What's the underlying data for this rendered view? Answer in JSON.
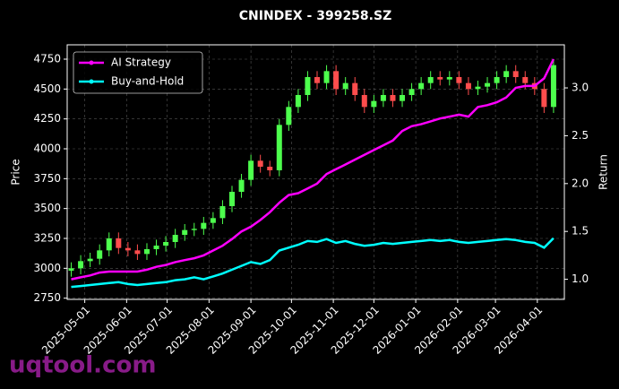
{
  "chart_data": {
    "type": "candlestick",
    "title": "CNINDEX - 399258.SZ",
    "y_label": "Price",
    "y2_label": "Return",
    "watermark": "uqtool.com",
    "up_color": "#4dff4d",
    "down_color": "#ff4d4d",
    "grid": true,
    "legend": "upper left",
    "x": [
      "2025-04-21",
      "2025-04-28",
      "2025-05-05",
      "2025-05-12",
      "2025-05-19",
      "2025-05-26",
      "2025-06-02",
      "2025-06-09",
      "2025-06-16",
      "2025-06-23",
      "2025-06-30",
      "2025-07-07",
      "2025-07-14",
      "2025-07-21",
      "2025-07-28",
      "2025-08-04",
      "2025-08-11",
      "2025-08-18",
      "2025-08-25",
      "2025-09-01",
      "2025-09-08",
      "2025-09-15",
      "2025-09-22",
      "2025-09-29",
      "2025-10-06",
      "2025-10-13",
      "2025-10-20",
      "2025-10-27",
      "2025-11-03",
      "2025-11-10",
      "2025-11-17",
      "2025-11-24",
      "2025-12-01",
      "2025-12-08",
      "2025-12-15",
      "2025-12-22",
      "2025-12-29",
      "2026-01-05",
      "2026-01-12",
      "2026-01-19",
      "2026-01-26",
      "2026-02-02",
      "2026-02-09",
      "2026-02-16",
      "2026-02-23",
      "2026-03-02",
      "2026-03-09",
      "2026-03-16",
      "2026-03-23",
      "2026-03-30",
      "2026-04-06",
      "2026-04-13"
    ],
    "open": [
      2980,
      3000,
      3060,
      3080,
      3150,
      3250,
      3170,
      3150,
      3120,
      3160,
      3190,
      3220,
      3280,
      3320,
      3330,
      3380,
      3420,
      3520,
      3640,
      3740,
      3900,
      3850,
      3820,
      4200,
      4350,
      4450,
      4600,
      4550,
      4650,
      4500,
      4550,
      4450,
      4350,
      4400,
      4450,
      4400,
      4450,
      4500,
      4550,
      4600,
      4580,
      4600,
      4550,
      4500,
      4520,
      4550,
      4600,
      4650,
      4600,
      4550,
      4500,
      4350
    ],
    "high": [
      3050,
      3110,
      3130,
      3200,
      3300,
      3300,
      3220,
      3200,
      3210,
      3240,
      3270,
      3330,
      3370,
      3380,
      3430,
      3470,
      3570,
      3690,
      3790,
      3950,
      3950,
      3900,
      4250,
      4400,
      4500,
      4650,
      4650,
      4700,
      4700,
      4600,
      4600,
      4500,
      4450,
      4500,
      4500,
      4500,
      4550,
      4600,
      4650,
      4650,
      4650,
      4650,
      4600,
      4570,
      4600,
      4650,
      4700,
      4700,
      4650,
      4600,
      4550,
      4750
    ],
    "low": [
      2930,
      2950,
      3010,
      3030,
      3100,
      3120,
      3100,
      3070,
      3070,
      3110,
      3140,
      3170,
      3230,
      3270,
      3280,
      3330,
      3370,
      3470,
      3590,
      3690,
      3800,
      3770,
      3770,
      4150,
      4300,
      4400,
      4500,
      4500,
      4450,
      4450,
      4400,
      4300,
      4300,
      4350,
      4350,
      4350,
      4400,
      4450,
      4500,
      4530,
      4530,
      4500,
      4450,
      4450,
      4470,
      4500,
      4550,
      4550,
      4500,
      4450,
      4300,
      4300
    ],
    "close": [
      3000,
      3060,
      3080,
      3150,
      3250,
      3170,
      3150,
      3120,
      3160,
      3190,
      3220,
      3280,
      3320,
      3330,
      3380,
      3420,
      3520,
      3640,
      3740,
      3900,
      3850,
      3820,
      4200,
      4350,
      4450,
      4600,
      4550,
      4650,
      4500,
      4550,
      4450,
      4350,
      4400,
      4450,
      4400,
      4450,
      4500,
      4550,
      4600,
      4580,
      4600,
      4550,
      4500,
      4520,
      4550,
      4600,
      4650,
      4600,
      4550,
      4500,
      4350,
      4700
    ],
    "series": [
      {
        "name": "AI Strategy",
        "color": "#ff00ff",
        "axis": "y2",
        "values": [
          1.0,
          1.02,
          1.04,
          1.07,
          1.08,
          1.08,
          1.08,
          1.08,
          1.1,
          1.13,
          1.15,
          1.18,
          1.2,
          1.22,
          1.25,
          1.3,
          1.35,
          1.42,
          1.5,
          1.55,
          1.62,
          1.7,
          1.8,
          1.88,
          1.9,
          1.95,
          2.0,
          2.1,
          2.15,
          2.2,
          2.25,
          2.3,
          2.35,
          2.4,
          2.45,
          2.55,
          2.6,
          2.62,
          2.65,
          2.68,
          2.7,
          2.72,
          2.7,
          2.8,
          2.82,
          2.85,
          2.9,
          3.0,
          3.02,
          3.02,
          3.1,
          3.3
        ]
      },
      {
        "name": "Buy-and-Hold",
        "color": "#00ffff",
        "axis": "y2",
        "values": [
          0.92,
          0.93,
          0.94,
          0.95,
          0.96,
          0.97,
          0.95,
          0.94,
          0.95,
          0.96,
          0.97,
          0.99,
          1.0,
          1.02,
          1.0,
          1.03,
          1.06,
          1.1,
          1.14,
          1.18,
          1.16,
          1.2,
          1.3,
          1.33,
          1.36,
          1.4,
          1.39,
          1.42,
          1.38,
          1.4,
          1.37,
          1.35,
          1.36,
          1.38,
          1.37,
          1.38,
          1.39,
          1.4,
          1.41,
          1.4,
          1.41,
          1.39,
          1.38,
          1.39,
          1.4,
          1.41,
          1.42,
          1.41,
          1.39,
          1.38,
          1.33,
          1.43
        ]
      }
    ],
    "xlim": [
      "2025-04-18",
      "2026-04-21"
    ],
    "xticks": [
      "2025-05-01",
      "2025-06-01",
      "2025-07-01",
      "2025-08-01",
      "2025-09-01",
      "2025-10-01",
      "2025-11-01",
      "2025-12-01",
      "2026-01-01",
      "2026-02-01",
      "2026-03-01",
      "2026-04-01"
    ],
    "ylim": [
      2740,
      4870
    ],
    "yticks": [
      2750,
      3000,
      3250,
      3500,
      3750,
      4000,
      4250,
      4500,
      4750
    ],
    "y2lim": [
      0.79,
      3.45
    ],
    "y2ticks": [
      {
        "value": 1,
        "label": "1.0"
      },
      1.5,
      {
        "value": 2,
        "label": "2.0"
      },
      2.5,
      {
        "value": 3,
        "label": "3.0"
      }
    ]
  }
}
